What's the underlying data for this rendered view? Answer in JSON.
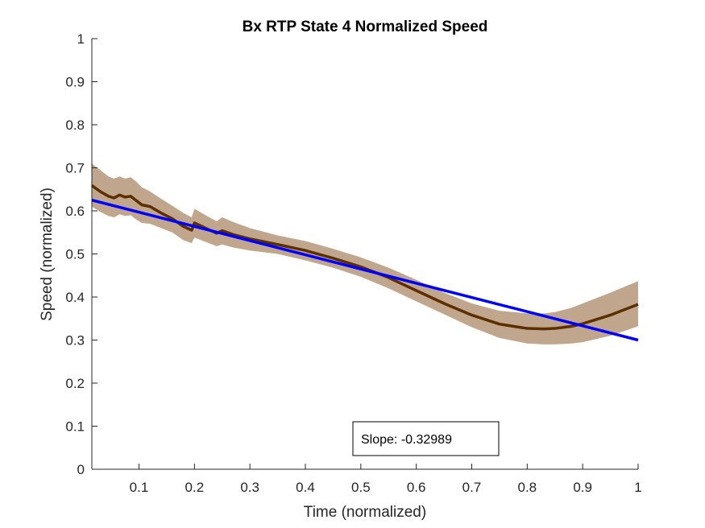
{
  "chart_data": {
    "type": "line",
    "title": "Bx  RTP State 4 Normalized Speed",
    "xlabel": "Time (normalized)",
    "ylabel": "Speed (normalized)",
    "xlim": [
      0.015,
      1.0
    ],
    "ylim": [
      0,
      1
    ],
    "x_ticks": [
      0.1,
      0.2,
      0.3,
      0.4,
      0.5,
      0.6,
      0.7,
      0.8,
      0.9,
      1
    ],
    "x_tick_labels": [
      "0.1",
      "0.2",
      "0.3",
      "0.4",
      "0.5",
      "0.6",
      "0.7",
      "0.8",
      "0.9",
      "1"
    ],
    "y_ticks": [
      0,
      0.1,
      0.2,
      0.3,
      0.4,
      0.5,
      0.6,
      0.7,
      0.8,
      0.9,
      1
    ],
    "y_tick_labels": [
      "0",
      "0.1",
      "0.2",
      "0.3",
      "0.4",
      "0.5",
      "0.6",
      "0.7",
      "0.8",
      "0.9",
      "1"
    ],
    "grid": false,
    "annotation": "Slope: -0.32989",
    "colors": {
      "mean_line": "#5c2e00",
      "band": "#bfa68c",
      "fit_line": "#0000ff"
    },
    "series": [
      {
        "role": "mean",
        "x": [
          0.015,
          0.03,
          0.045,
          0.055,
          0.065,
          0.075,
          0.085,
          0.095,
          0.105,
          0.12,
          0.14,
          0.16,
          0.18,
          0.195,
          0.2,
          0.22,
          0.24,
          0.25,
          0.27,
          0.3,
          0.35,
          0.4,
          0.45,
          0.5,
          0.55,
          0.6,
          0.65,
          0.7,
          0.75,
          0.8,
          0.83,
          0.85,
          0.88,
          0.9,
          0.95,
          1.0
        ],
        "y": [
          0.659,
          0.645,
          0.634,
          0.63,
          0.637,
          0.632,
          0.634,
          0.624,
          0.614,
          0.61,
          0.595,
          0.582,
          0.564,
          0.555,
          0.572,
          0.56,
          0.548,
          0.554,
          0.545,
          0.535,
          0.522,
          0.508,
          0.49,
          0.47,
          0.445,
          0.415,
          0.385,
          0.358,
          0.337,
          0.327,
          0.326,
          0.327,
          0.332,
          0.338,
          0.358,
          0.383
        ]
      },
      {
        "role": "band_upper",
        "x": [
          0.015,
          0.03,
          0.045,
          0.055,
          0.065,
          0.075,
          0.085,
          0.095,
          0.105,
          0.12,
          0.14,
          0.16,
          0.18,
          0.195,
          0.2,
          0.22,
          0.24,
          0.25,
          0.27,
          0.3,
          0.35,
          0.4,
          0.45,
          0.5,
          0.55,
          0.6,
          0.65,
          0.7,
          0.75,
          0.8,
          0.83,
          0.85,
          0.88,
          0.9,
          0.95,
          1.0
        ],
        "y": [
          0.71,
          0.695,
          0.68,
          0.675,
          0.68,
          0.675,
          0.678,
          0.668,
          0.655,
          0.645,
          0.628,
          0.612,
          0.595,
          0.585,
          0.605,
          0.59,
          0.576,
          0.585,
          0.574,
          0.56,
          0.543,
          0.53,
          0.512,
          0.492,
          0.468,
          0.44,
          0.41,
          0.385,
          0.368,
          0.362,
          0.362,
          0.365,
          0.375,
          0.385,
          0.41,
          0.437
        ]
      },
      {
        "role": "band_lower",
        "x": [
          0.015,
          0.03,
          0.045,
          0.055,
          0.065,
          0.075,
          0.085,
          0.095,
          0.105,
          0.12,
          0.14,
          0.16,
          0.18,
          0.195,
          0.2,
          0.22,
          0.24,
          0.25,
          0.27,
          0.3,
          0.35,
          0.4,
          0.45,
          0.5,
          0.55,
          0.6,
          0.65,
          0.7,
          0.75,
          0.8,
          0.83,
          0.85,
          0.88,
          0.9,
          0.95,
          1.0
        ],
        "y": [
          0.61,
          0.598,
          0.588,
          0.585,
          0.592,
          0.588,
          0.59,
          0.58,
          0.572,
          0.57,
          0.56,
          0.55,
          0.532,
          0.525,
          0.538,
          0.528,
          0.518,
          0.522,
          0.515,
          0.508,
          0.5,
          0.485,
          0.468,
          0.447,
          0.42,
          0.39,
          0.36,
          0.33,
          0.305,
          0.292,
          0.29,
          0.29,
          0.292,
          0.295,
          0.31,
          0.332
        ]
      },
      {
        "role": "linear_fit",
        "x": [
          0.015,
          1.0
        ],
        "y": [
          0.625,
          0.3
        ]
      }
    ]
  }
}
